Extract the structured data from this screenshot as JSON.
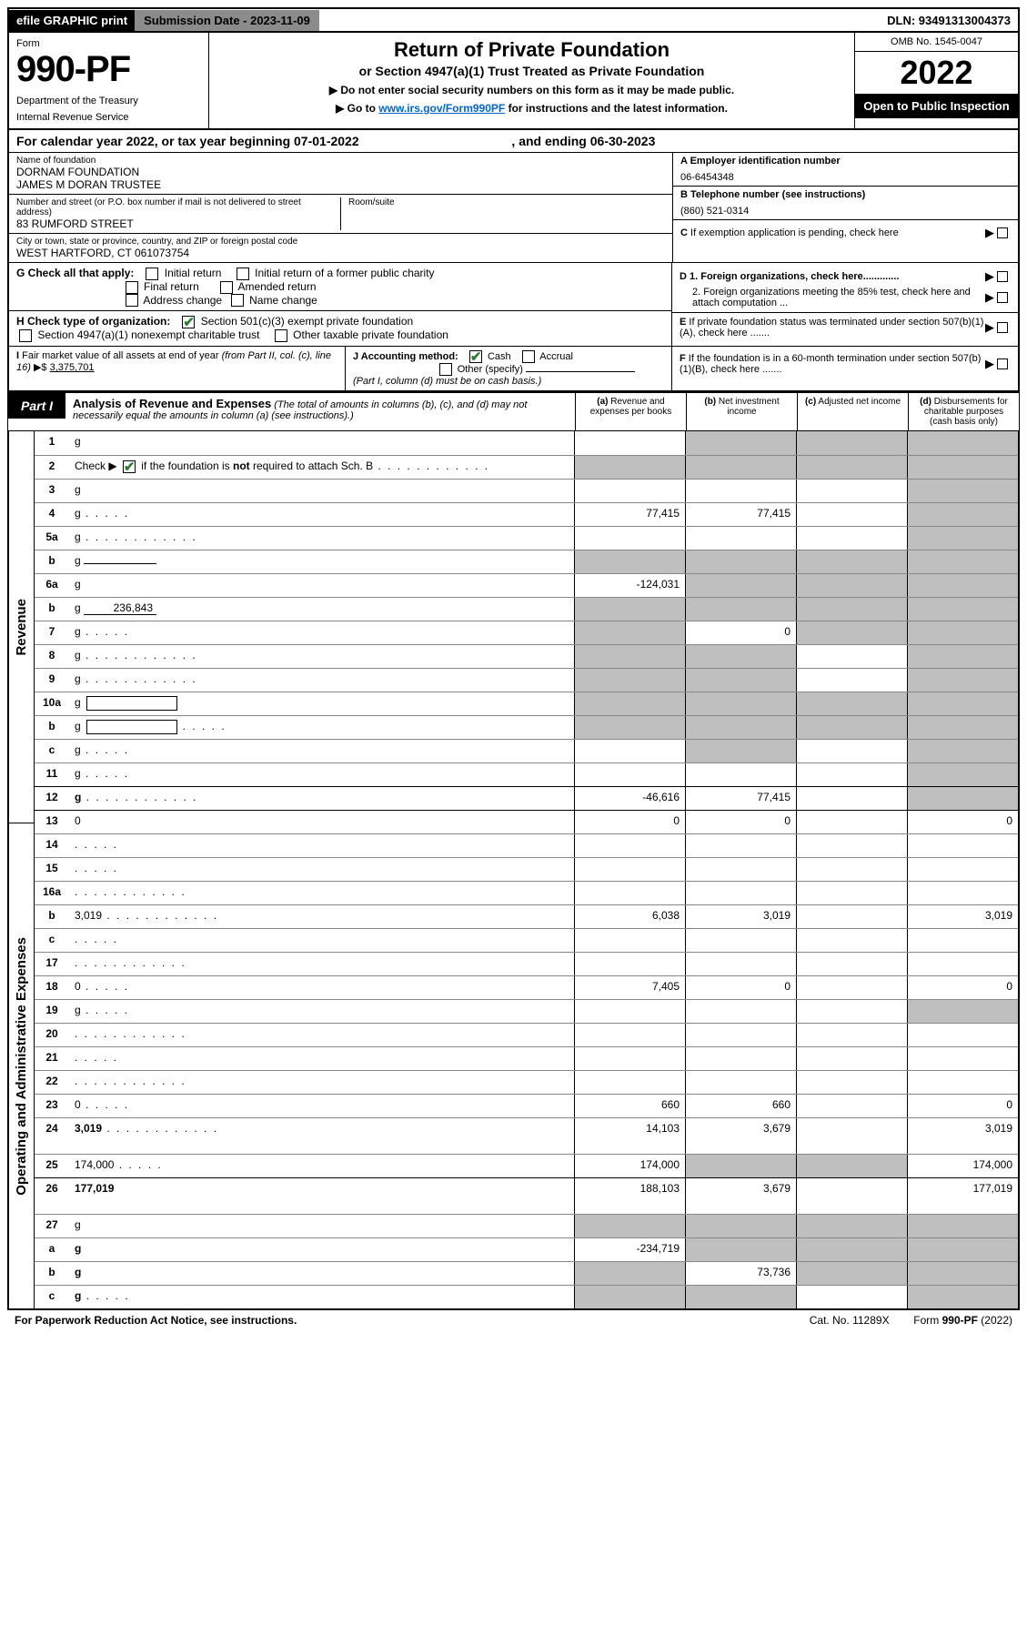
{
  "colors": {
    "bg_grey": "#bfbfbf",
    "check_green": "#2e7d32",
    "link": "#0066cc",
    "topbar_grey": "#8b8b8b"
  },
  "top": {
    "efile": "efile GRAPHIC print",
    "submission": "Submission Date - 2023-11-09",
    "dln": "DLN: 93491313004373"
  },
  "header": {
    "form_label": "Form",
    "form_num": "990-PF",
    "dept": "Department of the Treasury",
    "irs": "Internal Revenue Service",
    "title": "Return of Private Foundation",
    "subtitle": "or Section 4947(a)(1) Trust Treated as Private Foundation",
    "bullet1": "▶ Do not enter social security numbers on this form as it may be made public.",
    "bullet2_pre": "▶ Go to ",
    "bullet2_link": "www.irs.gov/Form990PF",
    "bullet2_post": " for instructions and the latest information.",
    "omb": "OMB No. 1545-0047",
    "year": "2022",
    "open": "Open to Public Inspection"
  },
  "cal": {
    "pre": "For calendar year 2022, or tax year beginning ",
    "begin": "07-01-2022",
    "mid": " , and ending ",
    "end": "06-30-2023"
  },
  "entity": {
    "name_lbl": "Name of foundation",
    "name1": "DORNAM FOUNDATION",
    "name2": "JAMES M DORAN TRUSTEE",
    "addr_lbl": "Number and street (or P.O. box number if mail is not delivered to street address)",
    "addr": "83 RUMFORD STREET",
    "room_lbl": "Room/suite",
    "city_lbl": "City or town, state or province, country, and ZIP or foreign postal code",
    "city": "WEST HARTFORD, CT  061073754",
    "a_lbl": "A Employer identification number",
    "a_val": "06-6454348",
    "b_lbl": "B Telephone number (see instructions)",
    "b_val": "(860) 521-0314",
    "c_lbl": "C If exemption application is pending, check here",
    "d1": "D 1. Foreign organizations, check here.............",
    "d2": "2. Foreign organizations meeting the 85% test, check here and attach computation ...",
    "e": "E  If private foundation status was terminated under section 507(b)(1)(A), check here .......",
    "f": "F  If the foundation is in a 60-month termination under section 507(b)(1)(B), check here ......."
  },
  "g": {
    "lbl": "G Check all that apply:",
    "opts": [
      "Initial return",
      "Initial return of a former public charity",
      "Final return",
      "Amended return",
      "Address change",
      "Name change"
    ]
  },
  "h": {
    "lbl": "H Check type of organization:",
    "opt1": "Section 501(c)(3) exempt private foundation",
    "opt2": "Section 4947(a)(1) nonexempt charitable trust",
    "opt3": "Other taxable private foundation"
  },
  "i": {
    "lbl": "I Fair market value of all assets at end of year (from Part II, col. (c), line 16) ▶$ ",
    "val": "3,375,701"
  },
  "j": {
    "lbl": "J Accounting method:",
    "cash": "Cash",
    "accrual": "Accrual",
    "other": "Other (specify)",
    "note": "(Part I, column (d) must be on cash basis.)"
  },
  "part1": {
    "label": "Part I",
    "title": "Analysis of Revenue and Expenses",
    "note": " (The total of amounts in columns (b), (c), and (d) may not necessarily equal the amounts in column (a) (see instructions).)",
    "col_a": "(a) Revenue and expenses per books",
    "col_b": "(b) Net investment income",
    "col_c": "(c) Adjusted net income",
    "col_d": "(d) Disbursements for charitable purposes (cash basis only)"
  },
  "side": {
    "rev": "Revenue",
    "exp": "Operating and Administrative Expenses"
  },
  "rows": [
    {
      "n": "1",
      "d": "g",
      "a": "",
      "b": "g",
      "c": "g",
      "ty": "rev"
    },
    {
      "n": "2",
      "d": "g",
      "a": "g",
      "b": "g",
      "c": "g",
      "ty": "rev",
      "chk": true,
      "dots": true
    },
    {
      "n": "3",
      "d": "g",
      "a": "",
      "b": "",
      "c": "",
      "ty": "rev"
    },
    {
      "n": "4",
      "d": "g",
      "a": "77,415",
      "b": "77,415",
      "c": "",
      "ty": "rev",
      "dots_s": true
    },
    {
      "n": "5a",
      "d": "g",
      "a": "",
      "b": "",
      "c": "",
      "ty": "rev",
      "dots": true
    },
    {
      "n": "b",
      "d": "g",
      "a": "g",
      "b": "g",
      "c": "g",
      "ty": "rev",
      "under": ""
    },
    {
      "n": "6a",
      "d": "g",
      "a": "-124,031",
      "b": "g",
      "c": "g",
      "ty": "rev"
    },
    {
      "n": "b",
      "d": "g",
      "a": "g",
      "b": "g",
      "c": "g",
      "ty": "rev",
      "under": "236,843"
    },
    {
      "n": "7",
      "d": "g",
      "a": "g",
      "b": "0",
      "c": "g",
      "ty": "rev",
      "dots_s": true
    },
    {
      "n": "8",
      "d": "g",
      "a": "g",
      "b": "g",
      "c": "",
      "ty": "rev",
      "dots": true
    },
    {
      "n": "9",
      "d": "g",
      "a": "g",
      "b": "g",
      "c": "",
      "ty": "rev",
      "dots": true
    },
    {
      "n": "10a",
      "d": "g",
      "a": "g",
      "b": "g",
      "c": "g",
      "ty": "rev",
      "box": true
    },
    {
      "n": "b",
      "d": "g",
      "a": "g",
      "b": "g",
      "c": "g",
      "ty": "rev",
      "dots_s": true,
      "box": true
    },
    {
      "n": "c",
      "d": "g",
      "a": "",
      "b": "g",
      "c": "",
      "ty": "rev",
      "dots_s": true
    },
    {
      "n": "11",
      "d": "g",
      "a": "",
      "b": "",
      "c": "",
      "ty": "rev",
      "dots_s": true
    },
    {
      "n": "12",
      "d": "g",
      "a": "-46,616",
      "b": "77,415",
      "c": "",
      "ty": "rev",
      "bold": true,
      "dots": true,
      "sep": true
    },
    {
      "n": "13",
      "d": "0",
      "a": "0",
      "b": "0",
      "c": "",
      "ty": "exp"
    },
    {
      "n": "14",
      "d": "",
      "a": "",
      "b": "",
      "c": "",
      "ty": "exp",
      "dots_s": true
    },
    {
      "n": "15",
      "d": "",
      "a": "",
      "b": "",
      "c": "",
      "ty": "exp",
      "dots_s": true
    },
    {
      "n": "16a",
      "d": "",
      "a": "",
      "b": "",
      "c": "",
      "ty": "exp",
      "dots": true
    },
    {
      "n": "b",
      "d": "3,019",
      "a": "6,038",
      "b": "3,019",
      "c": "",
      "ty": "exp",
      "dots": true
    },
    {
      "n": "c",
      "d": "",
      "a": "",
      "b": "",
      "c": "",
      "ty": "exp",
      "dots_s": true
    },
    {
      "n": "17",
      "d": "",
      "a": "",
      "b": "",
      "c": "",
      "ty": "exp",
      "dots": true
    },
    {
      "n": "18",
      "d": "0",
      "a": "7,405",
      "b": "0",
      "c": "",
      "ty": "exp",
      "dots_s": true
    },
    {
      "n": "19",
      "d": "g",
      "a": "",
      "b": "",
      "c": "",
      "ty": "exp",
      "dots_s": true
    },
    {
      "n": "20",
      "d": "",
      "a": "",
      "b": "",
      "c": "",
      "ty": "exp",
      "dots": true
    },
    {
      "n": "21",
      "d": "",
      "a": "",
      "b": "",
      "c": "",
      "ty": "exp",
      "dots_s": true
    },
    {
      "n": "22",
      "d": "",
      "a": "",
      "b": "",
      "c": "",
      "ty": "exp",
      "dots": true
    },
    {
      "n": "23",
      "d": "0",
      "a": "660",
      "b": "660",
      "c": "",
      "ty": "exp",
      "dots_s": true
    },
    {
      "n": "24",
      "d": "3,019",
      "a": "14,103",
      "b": "3,679",
      "c": "",
      "ty": "exp",
      "bold": true,
      "dots": true,
      "tall": true
    },
    {
      "n": "25",
      "d": "174,000",
      "a": "174,000",
      "b": "g",
      "c": "g",
      "ty": "exp",
      "dots_s": true
    },
    {
      "n": "26",
      "d": "177,019",
      "a": "188,103",
      "b": "3,679",
      "c": "",
      "ty": "exp",
      "bold": true,
      "tall": true,
      "sep": true
    },
    {
      "n": "27",
      "d": "g",
      "a": "g",
      "b": "g",
      "c": "g",
      "ty": "exp"
    },
    {
      "n": "a",
      "d": "g",
      "a": "-234,719",
      "b": "g",
      "c": "g",
      "ty": "exp",
      "bold": true
    },
    {
      "n": "b",
      "d": "g",
      "a": "g",
      "b": "73,736",
      "c": "g",
      "ty": "exp",
      "bold": true
    },
    {
      "n": "c",
      "d": "g",
      "a": "g",
      "b": "g",
      "c": "",
      "ty": "exp",
      "bold": true,
      "dots_s": true
    }
  ],
  "foot": {
    "left": "For Paperwork Reduction Act Notice, see instructions.",
    "mid": "Cat. No. 11289X",
    "right": "Form 990-PF (2022)"
  }
}
